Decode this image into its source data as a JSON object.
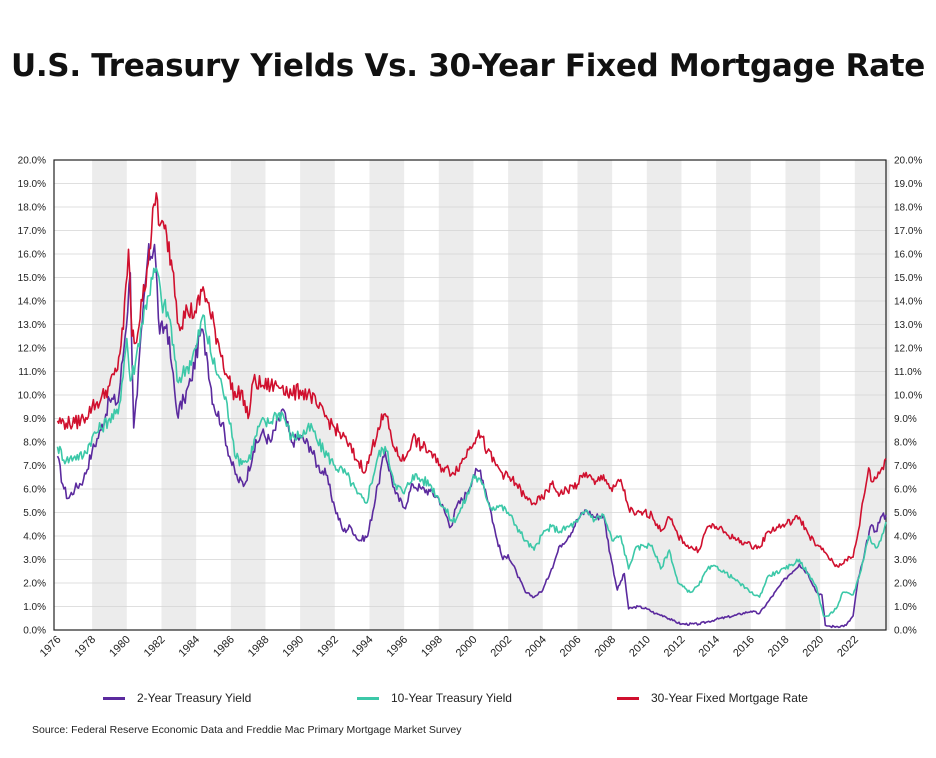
{
  "title": "U.S. Treasury Yields Vs. 30-Year Fixed Mortgage Rate",
  "source": "Source: Federal Reserve Economic Data and Freddie Mac Primary Mortgage Market Survey",
  "colors": {
    "two_year": "#5b2a9e",
    "ten_year": "#3cc8a8",
    "mortgage": "#d0102e",
    "band": "#ececec",
    "grid": "#d4d4d4"
  },
  "chart_data": {
    "type": "line",
    "title": "U.S. Treasury Yields Vs. 30-Year Fixed Mortgage Rate",
    "xlabel": "",
    "ylabel": "",
    "xlim": [
      1975.8,
      2023.8
    ],
    "ylim": [
      0,
      20
    ],
    "grid": true,
    "legend_placement": "bottom",
    "x_ticks": [
      "1976",
      "1978",
      "1980",
      "1982",
      "1984",
      "1986",
      "1988",
      "1990",
      "1992",
      "1994",
      "1996",
      "1998",
      "2000",
      "2002",
      "2004",
      "2006",
      "2008",
      "2010",
      "2012",
      "2014",
      "2016",
      "2018",
      "2020",
      "2022"
    ],
    "y_ticks": [
      "0.0%",
      "1.0%",
      "2.0%",
      "3.0%",
      "4.0%",
      "5.0%",
      "6.0%",
      "7.0%",
      "8.0%",
      "9.0%",
      "10.0%",
      "11.0%",
      "12.0%",
      "13.0%",
      "14.0%",
      "15.0%",
      "16.0%",
      "17.0%",
      "18.0%",
      "19.0%",
      "20.0%"
    ],
    "series": [
      {
        "name": "2-Year Treasury Yield",
        "color": "#5b2a9e",
        "x": [
          1976.0,
          1976.3,
          1976.6,
          1977.0,
          1977.5,
          1978.0,
          1978.5,
          1979.0,
          1979.5,
          1979.9,
          1980.2,
          1980.4,
          1980.6,
          1980.9,
          1981.2,
          1981.6,
          1981.9,
          1982.3,
          1982.6,
          1982.9,
          1983.3,
          1983.7,
          1984.3,
          1984.6,
          1985.0,
          1985.5,
          1986.0,
          1986.4,
          1986.8,
          1987.3,
          1987.8,
          1988.3,
          1989.0,
          1989.5,
          1990.0,
          1990.6,
          1991.0,
          1991.5,
          1992.0,
          1992.5,
          1992.9,
          1993.4,
          1993.9,
          1994.5,
          1994.9,
          1995.5,
          1996.0,
          1996.5,
          1997.0,
          1997.5,
          1998.0,
          1998.7,
          1999.0,
          1999.6,
          2000.0,
          2000.4,
          2000.9,
          2001.3,
          2001.7,
          2002.0,
          2002.5,
          2003.0,
          2003.5,
          2004.0,
          2004.5,
          2005.0,
          2005.5,
          2006.0,
          2006.5,
          2007.0,
          2007.5,
          2007.9,
          2008.3,
          2008.7,
          2008.95,
          2009.5,
          2010.0,
          2010.5,
          2011.0,
          2011.5,
          2012.0,
          2013.0,
          2013.5,
          2014.0,
          2015.0,
          2016.0,
          2016.5,
          2017.0,
          2018.0,
          2018.8,
          2019.3,
          2019.8,
          2020.1,
          2020.3,
          2020.6,
          2021.0,
          2021.5,
          2021.9,
          2022.2,
          2022.5,
          2022.9,
          2023.2,
          2023.5,
          2023.8
        ],
        "y": [
          7.4,
          6.2,
          5.6,
          6.0,
          6.4,
          7.6,
          8.5,
          9.8,
          9.7,
          12.5,
          15.2,
          8.6,
          10.0,
          13.2,
          15.8,
          16.4,
          12.6,
          13.0,
          11.2,
          9.2,
          9.8,
          10.6,
          12.8,
          11.8,
          9.6,
          8.8,
          7.2,
          6.4,
          6.2,
          7.6,
          8.4,
          8.0,
          9.4,
          8.0,
          8.2,
          7.8,
          7.0,
          6.6,
          5.2,
          4.2,
          4.4,
          3.8,
          4.0,
          6.2,
          7.6,
          5.8,
          5.2,
          6.2,
          6.0,
          5.9,
          5.6,
          4.4,
          5.2,
          5.8,
          6.6,
          6.8,
          5.4,
          4.0,
          3.0,
          3.2,
          2.4,
          1.6,
          1.4,
          1.7,
          2.6,
          3.6,
          4.0,
          4.7,
          5.1,
          4.8,
          4.9,
          3.2,
          1.7,
          2.4,
          0.9,
          1.0,
          0.9,
          0.7,
          0.6,
          0.4,
          0.25,
          0.25,
          0.35,
          0.45,
          0.6,
          0.8,
          0.7,
          1.2,
          2.2,
          2.8,
          2.4,
          1.6,
          1.5,
          0.2,
          0.15,
          0.15,
          0.2,
          0.6,
          2.2,
          3.0,
          4.4,
          4.2,
          4.8,
          4.9
        ]
      },
      {
        "name": "10-Year Treasury Yield",
        "color": "#3cc8a8",
        "x": [
          1976.0,
          1976.5,
          1977.0,
          1977.5,
          1978.0,
          1978.5,
          1979.0,
          1979.5,
          1980.0,
          1980.2,
          1980.5,
          1980.8,
          1981.2,
          1981.7,
          1982.0,
          1982.5,
          1982.9,
          1983.5,
          1984.0,
          1984.4,
          1984.9,
          1985.5,
          1986.0,
          1986.3,
          1986.7,
          1987.0,
          1987.7,
          1988.2,
          1988.6,
          1989.0,
          1989.5,
          1990.0,
          1990.7,
          1991.0,
          1992.0,
          1992.7,
          1993.3,
          1993.8,
          1994.5,
          1994.9,
          1995.5,
          1996.0,
          1996.5,
          1997.0,
          1997.5,
          1998.0,
          1998.8,
          1999.2,
          1999.8,
          2000.0,
          2000.5,
          2001.0,
          2001.5,
          2002.0,
          2002.5,
          2003.0,
          2003.5,
          2004.0,
          2004.5,
          2005.0,
          2006.0,
          2006.5,
          2007.0,
          2007.5,
          2008.0,
          2008.5,
          2008.95,
          2009.3,
          2009.8,
          2010.3,
          2010.8,
          2011.3,
          2011.8,
          2012.5,
          2013.0,
          2013.5,
          2014.0,
          2015.0,
          2016.0,
          2016.5,
          2017.0,
          2018.0,
          2018.8,
          2019.3,
          2019.8,
          2020.2,
          2020.5,
          2021.0,
          2021.3,
          2021.9,
          2022.3,
          2022.8,
          2023.2,
          2023.5,
          2023.8
        ],
        "y": [
          7.8,
          7.2,
          7.4,
          7.4,
          8.2,
          8.6,
          9.0,
          9.2,
          12.4,
          10.6,
          11.4,
          12.8,
          14.2,
          15.4,
          14.0,
          13.2,
          10.6,
          11.2,
          12.0,
          13.4,
          11.6,
          10.4,
          8.8,
          7.3,
          7.2,
          7.2,
          8.8,
          8.8,
          9.2,
          9.2,
          8.2,
          8.3,
          8.6,
          8.0,
          7.0,
          6.6,
          5.8,
          5.4,
          7.4,
          7.8,
          6.2,
          5.8,
          6.6,
          6.4,
          6.2,
          5.6,
          4.6,
          5.0,
          6.0,
          6.6,
          6.2,
          5.2,
          5.3,
          5.0,
          4.4,
          3.8,
          3.4,
          4.1,
          4.4,
          4.2,
          4.6,
          5.1,
          4.7,
          4.9,
          3.8,
          4.0,
          2.6,
          3.4,
          3.6,
          3.6,
          2.6,
          3.4,
          2.0,
          1.6,
          1.9,
          2.6,
          2.7,
          2.2,
          1.6,
          1.4,
          2.3,
          2.6,
          3.0,
          2.4,
          1.8,
          0.6,
          0.6,
          1.0,
          1.6,
          1.5,
          2.4,
          4.0,
          3.5,
          3.8,
          4.6
        ]
      },
      {
        "name": "30-Year Fixed Mortgage Rate",
        "color": "#d0102e",
        "x": [
          1976.0,
          1976.5,
          1977.0,
          1977.5,
          1978.0,
          1978.5,
          1979.0,
          1979.4,
          1979.8,
          1980.1,
          1980.3,
          1980.5,
          1980.9,
          1981.3,
          1981.7,
          1981.9,
          1982.3,
          1982.7,
          1983.0,
          1983.5,
          1984.0,
          1984.4,
          1984.8,
          1985.3,
          1985.8,
          1986.3,
          1986.6,
          1987.0,
          1987.3,
          1987.8,
          1988.3,
          1989.0,
          1989.5,
          1990.0,
          1990.6,
          1991.0,
          1992.0,
          1992.7,
          1993.3,
          1993.8,
          1994.5,
          1994.9,
          1995.5,
          1996.0,
          1996.5,
          1997.0,
          1997.5,
          1998.0,
          1998.8,
          1999.3,
          1999.8,
          2000.3,
          2000.8,
          2001.3,
          2001.8,
          2002.5,
          2003.0,
          2003.5,
          2004.0,
          2004.5,
          2005.0,
          2006.0,
          2006.5,
          2007.0,
          2007.5,
          2008.0,
          2008.5,
          2008.95,
          2009.3,
          2009.8,
          2010.3,
          2010.8,
          2011.3,
          2011.8,
          2012.5,
          2013.0,
          2013.5,
          2014.0,
          2015.0,
          2016.0,
          2016.5,
          2017.0,
          2018.0,
          2018.8,
          2019.3,
          2019.8,
          2020.3,
          2020.8,
          2021.0,
          2021.5,
          2021.9,
          2022.2,
          2022.5,
          2022.8,
          2023.0,
          2023.5,
          2023.8
        ],
        "y": [
          8.9,
          8.8,
          8.8,
          9.0,
          9.5,
          9.8,
          10.4,
          11.0,
          12.8,
          16.2,
          12.5,
          12.2,
          14.0,
          16.2,
          18.6,
          17.2,
          16.8,
          15.2,
          13.0,
          13.6,
          13.5,
          14.6,
          13.5,
          12.2,
          10.8,
          9.9,
          10.2,
          9.0,
          10.6,
          10.4,
          10.4,
          10.4,
          10.0,
          10.2,
          10.0,
          9.5,
          8.6,
          8.0,
          7.2,
          6.8,
          8.6,
          9.2,
          7.6,
          7.2,
          8.2,
          7.8,
          7.6,
          7.0,
          6.7,
          7.1,
          7.8,
          8.5,
          7.6,
          7.0,
          6.6,
          6.2,
          5.6,
          5.4,
          5.6,
          6.2,
          5.8,
          6.2,
          6.7,
          6.2,
          6.6,
          5.9,
          6.4,
          5.2,
          4.9,
          5.0,
          4.9,
          4.2,
          4.8,
          4.0,
          3.5,
          3.4,
          4.4,
          4.4,
          3.9,
          3.6,
          3.5,
          4.2,
          4.5,
          4.8,
          4.1,
          3.6,
          3.3,
          2.8,
          2.7,
          3.0,
          3.1,
          4.2,
          5.6,
          6.9,
          6.3,
          6.8,
          7.3
        ]
      }
    ]
  }
}
